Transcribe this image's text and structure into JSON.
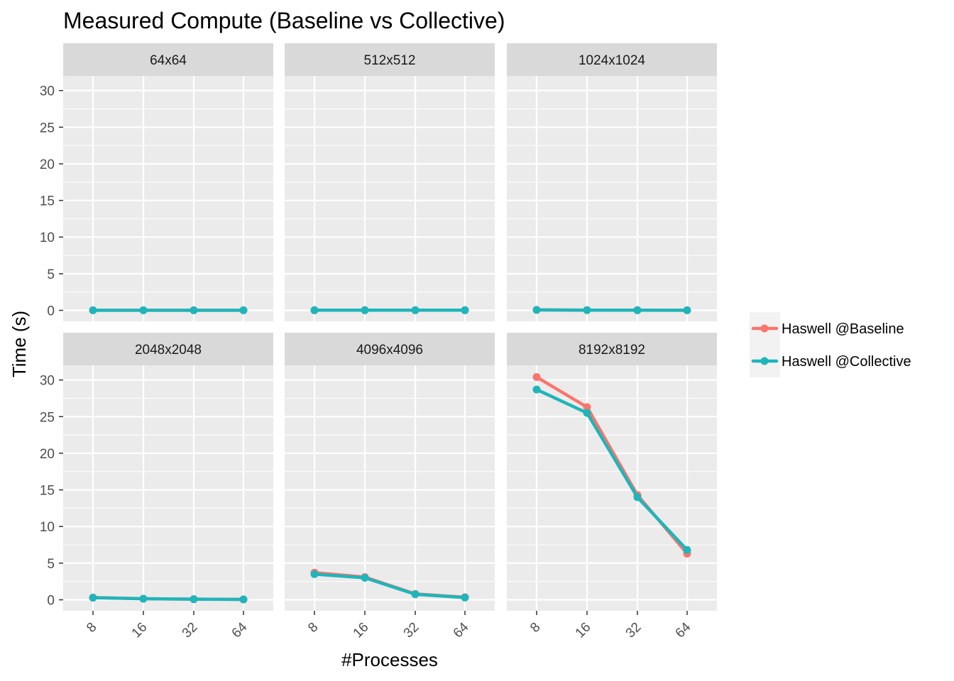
{
  "chart_data": {
    "type": "line",
    "title": "Measured Compute (Baseline vs Collective)",
    "xlabel": "#Processes",
    "ylabel": "Time (s)",
    "x_categories": [
      "8",
      "16",
      "32",
      "64"
    ],
    "y_ticks": [
      0,
      5,
      10,
      15,
      20,
      25,
      30
    ],
    "ylim": [
      -1.5,
      32
    ],
    "grid": true,
    "legend_position": "right",
    "series_meta": [
      {
        "name": "Haswell @Baseline",
        "color": "#F8766D"
      },
      {
        "name": "Haswell @Collective",
        "color": "#1FB5BA"
      }
    ],
    "panels": [
      {
        "label": "64x64",
        "series": [
          {
            "name": "Haswell @Baseline",
            "values": [
              0.01,
              0.01,
              0.01,
              0.01
            ]
          },
          {
            "name": "Haswell @Collective",
            "values": [
              0.01,
              0.01,
              0.01,
              0.01
            ]
          }
        ]
      },
      {
        "label": "512x512",
        "series": [
          {
            "name": "Haswell @Baseline",
            "values": [
              0.02,
              0.02,
              0.02,
              0.02
            ]
          },
          {
            "name": "Haswell @Collective",
            "values": [
              0.02,
              0.02,
              0.02,
              0.02
            ]
          }
        ]
      },
      {
        "label": "1024x1024",
        "series": [
          {
            "name": "Haswell @Baseline",
            "values": [
              0.06,
              0.03,
              0.02,
              0.01
            ]
          },
          {
            "name": "Haswell @Collective",
            "values": [
              0.06,
              0.03,
              0.02,
              0.01
            ]
          }
        ]
      },
      {
        "label": "2048x2048",
        "series": [
          {
            "name": "Haswell @Baseline",
            "values": [
              0.3,
              0.15,
              0.08,
              0.05
            ]
          },
          {
            "name": "Haswell @Collective",
            "values": [
              0.28,
              0.14,
              0.08,
              0.05
            ]
          }
        ]
      },
      {
        "label": "4096x4096",
        "series": [
          {
            "name": "Haswell @Baseline",
            "values": [
              3.7,
              3.1,
              0.8,
              0.35
            ]
          },
          {
            "name": "Haswell @Collective",
            "values": [
              3.5,
              3.0,
              0.75,
              0.3
            ]
          }
        ]
      },
      {
        "label": "8192x8192",
        "series": [
          {
            "name": "Haswell @Baseline",
            "values": [
              30.4,
              26.3,
              14.3,
              6.3
            ]
          },
          {
            "name": "Haswell @Collective",
            "values": [
              28.7,
              25.5,
              14.0,
              6.8
            ]
          }
        ]
      }
    ]
  }
}
